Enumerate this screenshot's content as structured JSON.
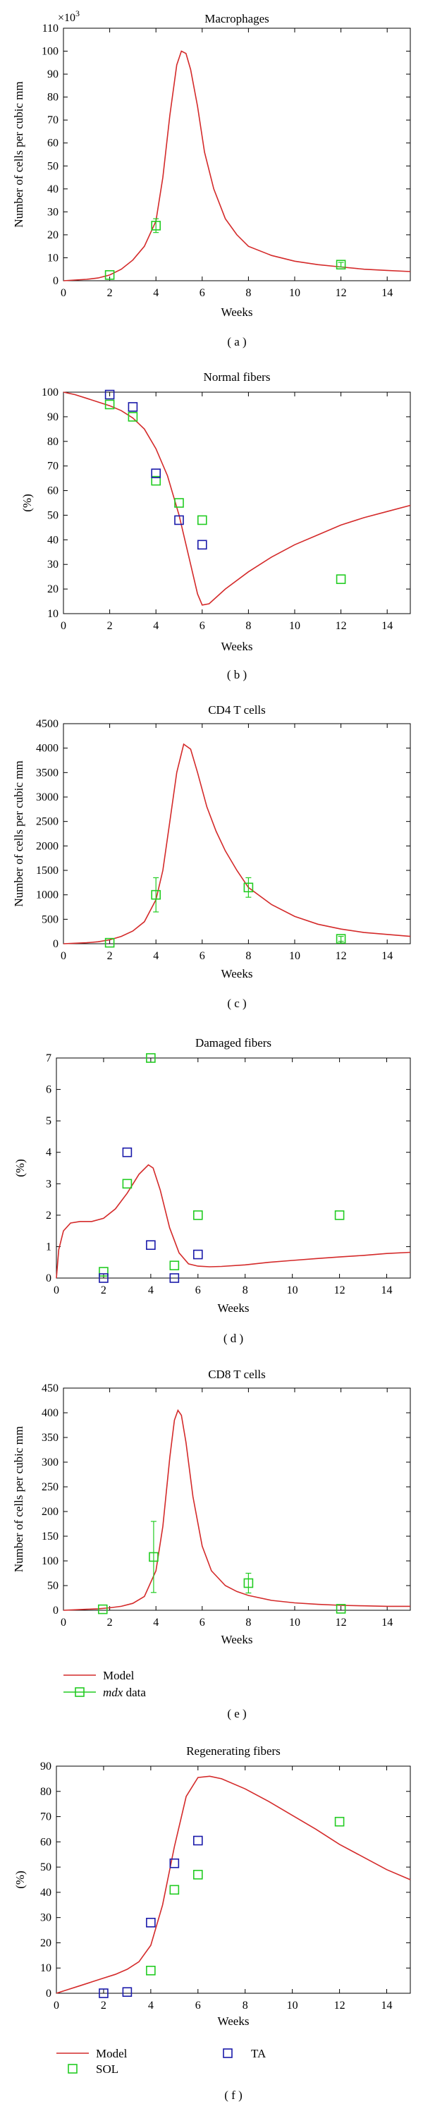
{
  "colors": {
    "model": "#d42a2a",
    "sol": "#22cc22",
    "ta": "#1a1aaa",
    "axis": "#000000"
  },
  "chart_data": [
    {
      "id": "a",
      "type": "line",
      "title": "Macrophages",
      "xlabel": "Weeks",
      "ylabel": "Number of cells per cubic mm",
      "multiplier_label": "×10",
      "multiplier_exp": "3",
      "xlim": [
        0,
        15
      ],
      "ylim": [
        0,
        110
      ],
      "xticks": [
        0,
        2,
        4,
        6,
        8,
        10,
        12,
        14
      ],
      "yticks": [
        0,
        10,
        20,
        30,
        40,
        50,
        60,
        70,
        80,
        90,
        100,
        110
      ],
      "caption": "( a )",
      "model": {
        "name": "Model",
        "x": [
          0,
          0.5,
          1,
          1.5,
          2,
          2.5,
          3,
          3.5,
          4,
          4.3,
          4.6,
          4.9,
          5.1,
          5.3,
          5.5,
          5.8,
          6.1,
          6.5,
          7,
          7.5,
          8,
          9,
          10,
          11,
          12,
          13,
          14,
          15
        ],
        "y": [
          0,
          0.3,
          0.6,
          1.2,
          2.5,
          5,
          9,
          15,
          26,
          45,
          72,
          94,
          100,
          99,
          92,
          76,
          56,
          40,
          27,
          20,
          15,
          11,
          8.5,
          7,
          6,
          5,
          4.5,
          4
        ]
      },
      "series": [
        {
          "name": "mdx data",
          "marker": "square",
          "color": "#22cc22",
          "x": [
            2,
            4,
            12
          ],
          "y": [
            2.5,
            24,
            7
          ],
          "err": [
            0,
            3,
            1
          ]
        }
      ]
    },
    {
      "id": "b",
      "type": "line",
      "title": "Normal fibers",
      "xlabel": "Weeks",
      "ylabel": "(%)",
      "xlim": [
        0,
        15
      ],
      "ylim": [
        10,
        100
      ],
      "xticks": [
        0,
        2,
        4,
        6,
        8,
        10,
        12,
        14
      ],
      "yticks": [
        10,
        20,
        30,
        40,
        50,
        60,
        70,
        80,
        90,
        100
      ],
      "caption": "( b )",
      "model": {
        "name": "Model",
        "x": [
          0,
          0.5,
          1,
          1.5,
          2,
          2.5,
          3,
          3.5,
          4,
          4.5,
          5,
          5.5,
          5.8,
          6,
          6.3,
          7,
          8,
          9,
          10,
          11,
          12,
          13,
          14,
          15
        ],
        "y": [
          100,
          99,
          97.5,
          96,
          94.5,
          92.5,
          89.5,
          85,
          77,
          66,
          50,
          30,
          18,
          13.5,
          14,
          20,
          27,
          33,
          38,
          42,
          46,
          49,
          51.5,
          54
        ]
      },
      "series": [
        {
          "name": "SOL",
          "marker": "square",
          "color": "#22cc22",
          "x": [
            2,
            3,
            4,
            5,
            6,
            12
          ],
          "y": [
            95,
            90,
            64,
            55,
            48,
            24
          ]
        },
        {
          "name": "TA",
          "marker": "square",
          "color": "#1a1aaa",
          "x": [
            2,
            3,
            4,
            5,
            6
          ],
          "y": [
            99,
            94,
            67,
            48,
            38
          ]
        }
      ]
    },
    {
      "id": "c",
      "type": "line",
      "title": "CD4 T cells",
      "xlabel": "Weeks",
      "ylabel": "Number of cells per cubic mm",
      "xlim": [
        0,
        15
      ],
      "ylim": [
        0,
        4500
      ],
      "xticks": [
        0,
        2,
        4,
        6,
        8,
        10,
        12,
        14
      ],
      "yticks": [
        0,
        500,
        1000,
        1500,
        2000,
        2500,
        3000,
        3500,
        4000,
        4500
      ],
      "caption": "( c )",
      "model": {
        "name": "Model",
        "x": [
          0,
          0.5,
          1,
          1.5,
          2,
          2.5,
          3,
          3.5,
          4,
          4.3,
          4.6,
          4.9,
          5.2,
          5.5,
          5.8,
          6.2,
          6.6,
          7,
          7.5,
          8,
          9,
          10,
          11,
          12,
          13,
          14,
          15
        ],
        "y": [
          0,
          10,
          20,
          40,
          80,
          150,
          260,
          450,
          900,
          1500,
          2500,
          3500,
          4080,
          3980,
          3500,
          2800,
          2300,
          1900,
          1500,
          1150,
          800,
          560,
          400,
          300,
          230,
          190,
          150
        ]
      },
      "series": [
        {
          "name": "mdx data",
          "marker": "square",
          "color": "#22cc22",
          "x": [
            2,
            4,
            8,
            12
          ],
          "y": [
            20,
            1000,
            1150,
            100
          ],
          "err": [
            0,
            350,
            200,
            50
          ]
        }
      ]
    },
    {
      "id": "d",
      "type": "line",
      "title": "Damaged fibers",
      "xlabel": "Weeks",
      "ylabel": "(%)",
      "xlim": [
        0,
        15
      ],
      "ylim": [
        0,
        7
      ],
      "xticks": [
        0,
        2,
        4,
        6,
        8,
        10,
        12,
        14
      ],
      "yticks": [
        0,
        1,
        2,
        3,
        4,
        5,
        6,
        7
      ],
      "caption": "( d )",
      "model": {
        "name": "Model",
        "x": [
          0,
          0.1,
          0.3,
          0.6,
          1,
          1.5,
          2,
          2.5,
          3,
          3.5,
          3.9,
          4.1,
          4.4,
          4.8,
          5.2,
          5.6,
          6,
          6.5,
          7,
          8,
          9,
          10,
          11,
          12,
          13,
          14,
          15
        ],
        "y": [
          0,
          0.9,
          1.5,
          1.75,
          1.8,
          1.8,
          1.9,
          2.2,
          2.7,
          3.3,
          3.6,
          3.5,
          2.8,
          1.6,
          0.8,
          0.45,
          0.38,
          0.36,
          0.37,
          0.42,
          0.5,
          0.56,
          0.62,
          0.67,
          0.72,
          0.78,
          0.82
        ]
      },
      "series": [
        {
          "name": "SOL",
          "marker": "square",
          "color": "#22cc22",
          "x": [
            2,
            3,
            4,
            5,
            6,
            12
          ],
          "y": [
            0.2,
            3,
            7,
            0.4,
            2,
            2
          ]
        },
        {
          "name": "TA",
          "marker": "square",
          "color": "#1a1aaa",
          "x": [
            2,
            3,
            4,
            5,
            6
          ],
          "y": [
            0,
            4,
            1.05,
            0,
            0.75
          ]
        }
      ]
    },
    {
      "id": "e",
      "type": "line",
      "title": "CD8 T cells",
      "xlabel": "Weeks",
      "ylabel": "Number of cells per cubic mm",
      "xlim": [
        0,
        15
      ],
      "ylim": [
        0,
        450
      ],
      "xticks": [
        0,
        2,
        4,
        6,
        8,
        10,
        12,
        14
      ],
      "yticks": [
        0,
        50,
        100,
        150,
        200,
        250,
        300,
        350,
        400,
        450
      ],
      "caption": "( e )",
      "legend": [
        {
          "label": "Model",
          "kind": "line"
        },
        {
          "label": "mdx data",
          "kind": "marker",
          "italic_part": "mdx"
        }
      ],
      "model": {
        "name": "Model",
        "x": [
          0,
          0.5,
          1,
          1.5,
          2,
          2.5,
          3,
          3.5,
          4,
          4.3,
          4.6,
          4.8,
          4.95,
          5.1,
          5.3,
          5.6,
          6,
          6.4,
          7,
          7.5,
          8,
          9,
          10,
          11,
          12,
          13,
          14,
          15
        ],
        "y": [
          0,
          1,
          2,
          3,
          5,
          8,
          14,
          28,
          80,
          170,
          310,
          385,
          405,
          395,
          340,
          230,
          130,
          80,
          50,
          38,
          30,
          20,
          15,
          12,
          10,
          9,
          8,
          8
        ]
      },
      "series": [
        {
          "name": "mdx data",
          "marker": "square",
          "color": "#22cc22",
          "x": [
            1.7,
            3.9,
            8,
            12
          ],
          "y": [
            2,
            108,
            55,
            3
          ],
          "err": [
            0,
            72,
            20,
            0
          ]
        }
      ]
    },
    {
      "id": "f",
      "type": "line",
      "title": "Regenerating fibers",
      "xlabel": "Weeks",
      "ylabel": "(%)",
      "xlim": [
        0,
        15
      ],
      "ylim": [
        0,
        90
      ],
      "xticks": [
        0,
        2,
        4,
        6,
        8,
        10,
        12,
        14
      ],
      "yticks": [
        0,
        10,
        20,
        30,
        40,
        50,
        60,
        70,
        80,
        90
      ],
      "caption": "( f )",
      "legend": [
        {
          "label": "Model",
          "kind": "line"
        },
        {
          "label": "SOL",
          "kind": "sol"
        },
        {
          "label": "TA",
          "kind": "ta"
        }
      ],
      "model": {
        "name": "Model",
        "x": [
          0,
          0.5,
          1,
          1.5,
          2,
          2.5,
          3,
          3.5,
          4,
          4.5,
          5,
          5.5,
          6,
          6.5,
          7,
          8,
          9,
          10,
          11,
          12,
          13,
          14,
          15
        ],
        "y": [
          0,
          1.5,
          3,
          4.5,
          6,
          7.5,
          9.5,
          12.5,
          19,
          35,
          58,
          78,
          85.5,
          86,
          85,
          81,
          76,
          70.5,
          65,
          59,
          54,
          49,
          45
        ]
      },
      "series": [
        {
          "name": "SOL",
          "marker": "square",
          "color": "#22cc22",
          "x": [
            4,
            5,
            6,
            12
          ],
          "y": [
            9,
            41,
            47,
            68
          ]
        },
        {
          "name": "TA",
          "marker": "square",
          "color": "#1a1aaa",
          "x": [
            2,
            3,
            4,
            5,
            6
          ],
          "y": [
            0,
            0.5,
            28,
            51.5,
            60.5
          ]
        }
      ]
    }
  ]
}
